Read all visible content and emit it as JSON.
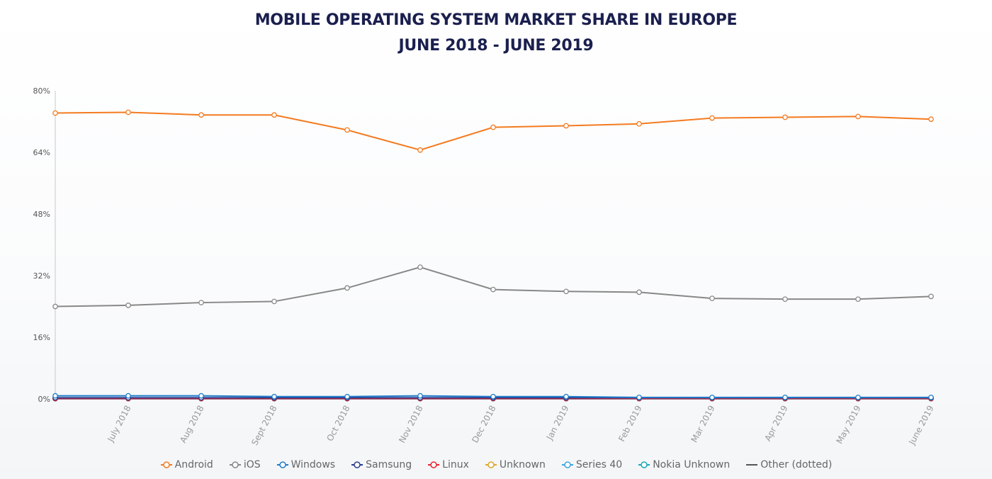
{
  "chart_data": {
    "type": "line",
    "title": "MOBILE OPERATING SYSTEM MARKET SHARE IN EUROPE",
    "subtitle": "JUNE 2018 - JUNE 2019",
    "xlabel": "",
    "ylabel": "",
    "ylim": [
      0,
      80
    ],
    "yticks": [
      "80%",
      "64%",
      "48%",
      "32%",
      "16%",
      "0%"
    ],
    "ytick_values": [
      80,
      64,
      48,
      32,
      16,
      0
    ],
    "categories": [
      "",
      "July 2018",
      "Aug 2018",
      "Sept 2018",
      "Oct 2018",
      "Nov 2018",
      "Dec 2018",
      "Jan 2019",
      "Feb 2019",
      "Mar 2019",
      "Apr 2019",
      "May 2019",
      "June 2019"
    ],
    "grid": false,
    "legend_position": "bottom",
    "series": [
      {
        "name": "Android",
        "color": "#f47b20",
        "marker": "circle",
        "values": [
          74.2,
          74.4,
          73.7,
          73.7,
          69.8,
          64.6,
          70.5,
          70.9,
          71.4,
          72.9,
          73.1,
          73.3,
          72.6
        ]
      },
      {
        "name": "iOS",
        "color": "#888888",
        "marker": "circle",
        "values": [
          24.0,
          24.3,
          25.0,
          25.3,
          28.8,
          34.2,
          28.4,
          27.9,
          27.7,
          26.1,
          25.9,
          25.9,
          26.6
        ]
      },
      {
        "name": "Windows",
        "color": "#1f7bc9",
        "marker": "circle",
        "values": [
          0.8,
          0.8,
          0.8,
          0.6,
          0.6,
          0.8,
          0.6,
          0.6,
          0.4,
          0.4,
          0.4,
          0.4,
          0.4
        ]
      },
      {
        "name": "Samsung",
        "color": "#2b3a8c",
        "marker": "circle",
        "values": [
          0.3,
          0.3,
          0.3,
          0.3,
          0.3,
          0.3,
          0.3,
          0.3,
          0.3,
          0.3,
          0.3,
          0.3,
          0.3
        ]
      },
      {
        "name": "Linux",
        "color": "#e8232a",
        "marker": "circle",
        "values": [
          0.1,
          0.1,
          0.1,
          0.1,
          0.1,
          0.1,
          0.1,
          0.1,
          0.1,
          0.1,
          0.1,
          0.1,
          0.1
        ]
      },
      {
        "name": "Unknown",
        "color": "#e0a526",
        "marker": "circle",
        "values": [
          0.1,
          0.1,
          0.1,
          0.1,
          0.1,
          0.1,
          0.1,
          0.1,
          0.1,
          0.1,
          0.1,
          0.1,
          0.1
        ]
      },
      {
        "name": "Series 40",
        "color": "#3ba6e0",
        "marker": "circle",
        "values": [
          0.05,
          0.05,
          0.05,
          0.05,
          0.05,
          0.05,
          0.05,
          0.05,
          0.05,
          0.05,
          0.05,
          0.05,
          0.05
        ]
      },
      {
        "name": "Nokia Unknown",
        "color": "#17a9b8",
        "marker": "circle",
        "values": [
          0.05,
          0.05,
          0.05,
          0.05,
          0.05,
          0.05,
          0.05,
          0.05,
          0.05,
          0.05,
          0.05,
          0.05,
          0.05
        ]
      },
      {
        "name": "Other (dotted)",
        "color": "#555555",
        "marker": "line",
        "values": [
          0.05,
          0.05,
          0.05,
          0.05,
          0.05,
          0.05,
          0.05,
          0.05,
          0.05,
          0.05,
          0.05,
          0.05,
          0.05
        ]
      }
    ]
  }
}
